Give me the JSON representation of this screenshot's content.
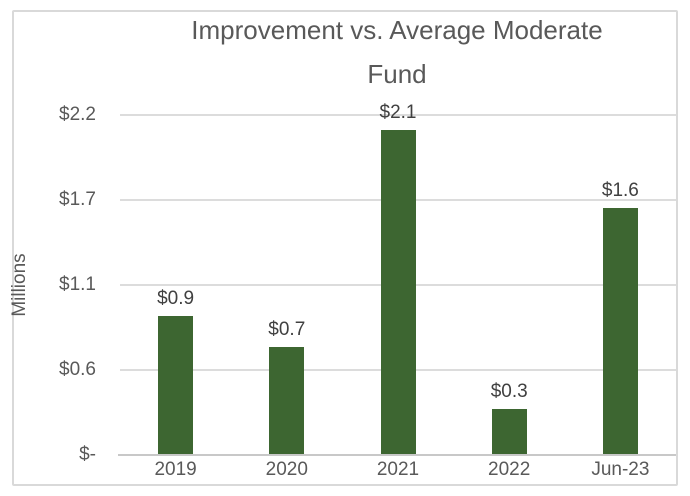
{
  "header": {
    "title_line1": "Improvement vs. Average Moderate",
    "title_line2": "Fund"
  },
  "chart_data": {
    "type": "bar",
    "title": "Improvement vs. Average Moderate Fund",
    "xlabel": "",
    "ylabel": "Millions",
    "categories": [
      "2019",
      "2020",
      "2021",
      "2022",
      "Jun-23"
    ],
    "values": [
      0.9,
      0.7,
      2.1,
      0.3,
      1.6
    ],
    "data_labels": [
      "$0.9",
      "$0.7",
      "$2.1",
      "$0.3",
      "$1.6"
    ],
    "ylim": [
      0,
      2.2
    ],
    "y_ticks": [
      {
        "value": 0,
        "label": "$-"
      },
      {
        "value": 0.55,
        "label": "$0.6"
      },
      {
        "value": 1.1,
        "label": "$1.1"
      },
      {
        "value": 1.65,
        "label": "$1.7"
      },
      {
        "value": 2.2,
        "label": "$2.2"
      }
    ],
    "grid": true,
    "legend": false,
    "colors": {
      "bar": "#3d6631",
      "title_text": "#595959",
      "axis_text": "#595959",
      "data_label_text": "#404040",
      "gridline": "#dcdcdc",
      "axis_line": "#c8c8c8",
      "chart_border": "#d9d9d9"
    }
  }
}
